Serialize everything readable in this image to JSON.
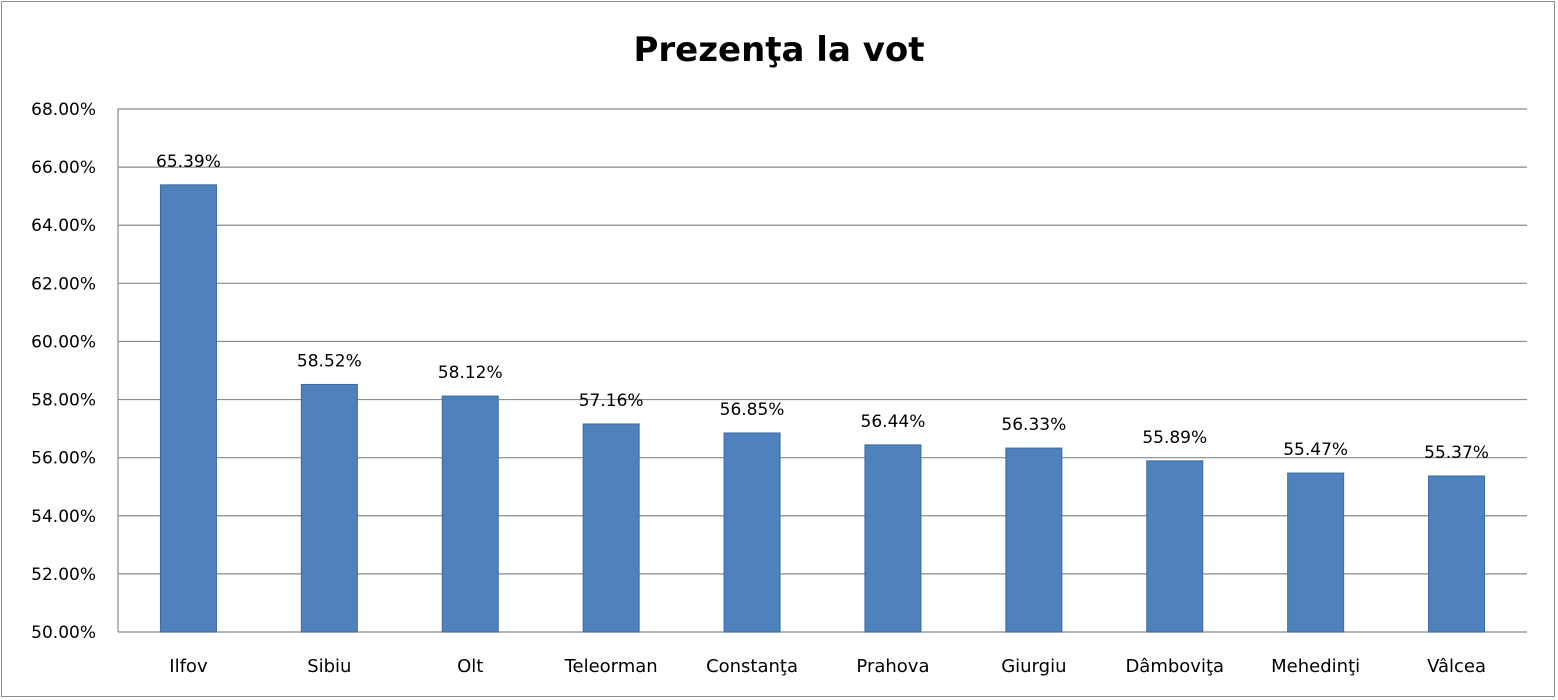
{
  "chart_data": {
    "type": "bar",
    "title": "Prezenţa la vot",
    "xlabel": "",
    "ylabel": "",
    "categories": [
      "Ilfov",
      "Sibiu",
      "Olt",
      "Teleorman",
      "Constanţa",
      "Prahova",
      "Giurgiu",
      "Dâmboviţa",
      "Mehedinţi",
      "Vâlcea"
    ],
    "values": [
      65.39,
      58.52,
      58.12,
      57.16,
      56.85,
      56.44,
      56.33,
      55.89,
      55.47,
      55.37
    ],
    "data_labels": [
      "65.39%",
      "58.52%",
      "58.12%",
      "57.16%",
      "56.85%",
      "56.44%",
      "56.33%",
      "55.89%",
      "55.47%",
      "55.37%"
    ],
    "ylim": [
      50,
      68
    ],
    "yticks": [
      50,
      52,
      54,
      56,
      58,
      60,
      62,
      64,
      66,
      68
    ],
    "ytick_labels": [
      "50.00%",
      "52.00%",
      "54.00%",
      "56.00%",
      "58.00%",
      "60.00%",
      "62.00%",
      "64.00%",
      "66.00%",
      "68.00%"
    ],
    "grid": true,
    "legend": "none",
    "bar_color": "#4f81bd"
  }
}
